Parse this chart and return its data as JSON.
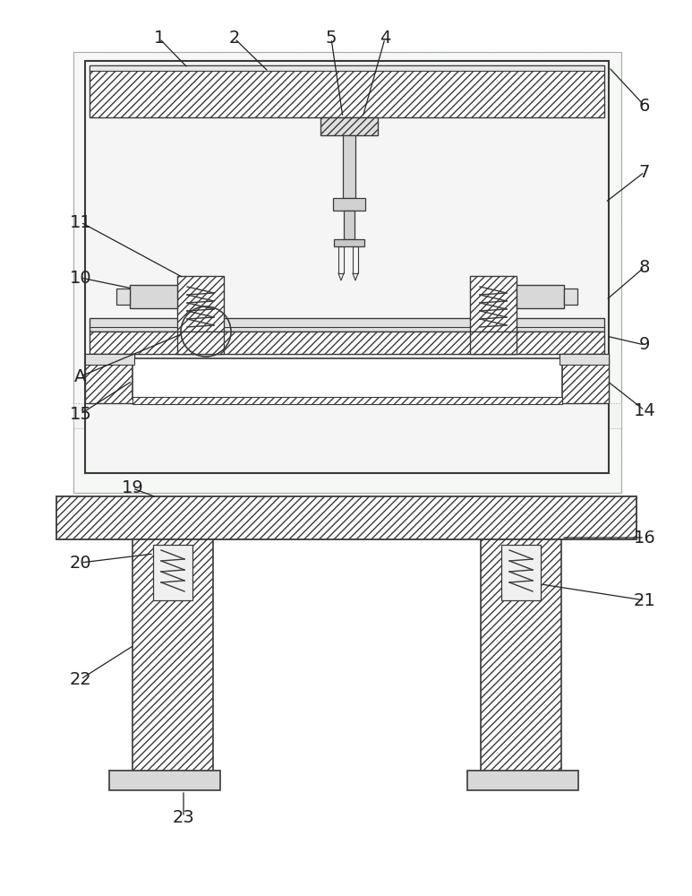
{
  "bg_color": "#ffffff",
  "lc": "#3a3a3a",
  "hatch_fill": "#f0f0f0",
  "hatch_dense": "////",
  "hatch_xx": "xxxx",
  "label_fs": 14,
  "label_color": "#222222"
}
